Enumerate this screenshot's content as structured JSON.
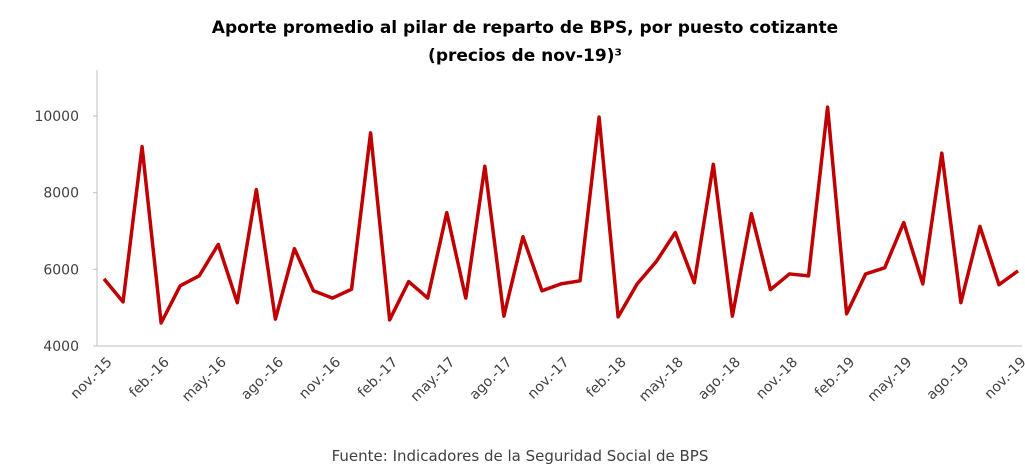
{
  "chart_data": {
    "type": "line",
    "title": "Aporte promedio al pilar de reparto de BPS, por puesto cotizante",
    "subtitle": "(precios de nov-19)³",
    "source": "Fuente: Indicadores de la Seguridad Social de BPS",
    "categories": [
      "nov.-15",
      null,
      null,
      "feb.-16",
      null,
      null,
      "may.-16",
      null,
      null,
      "ago.-16",
      null,
      null,
      "nov.-16",
      null,
      null,
      "feb.-17",
      null,
      null,
      "may.-17",
      null,
      null,
      "ago.-17",
      null,
      null,
      "nov.-17",
      null,
      null,
      "feb.-18",
      null,
      null,
      "may.-18",
      null,
      null,
      "ago.-18",
      null,
      null,
      "nov.-18",
      null,
      null,
      "feb.-19",
      null,
      null,
      "may.-19",
      null,
      null,
      "ago.-19",
      null,
      null,
      "nov.-19"
    ],
    "series": [
      {
        "color": "#c00000",
        "values": [
          5750,
          5150,
          9200,
          4600,
          5570,
          5830,
          6650,
          5130,
          8080,
          4700,
          6540,
          5440,
          5250,
          5480,
          9560,
          4680,
          5680,
          5250,
          7480,
          5250,
          8690,
          4780,
          6850,
          5440,
          5620,
          5700,
          9970,
          4760,
          5620,
          6200,
          6960,
          5650,
          8740,
          4780,
          7450,
          5470,
          5880,
          5830,
          10230,
          4840,
          5880,
          6040,
          7220,
          5620,
          9030,
          5130,
          7120,
          5600,
          5960
        ]
      }
    ],
    "ylim": [
      4000,
      11200
    ],
    "yticks": [
      4000,
      6000,
      8000,
      10000
    ],
    "grid": false
  }
}
